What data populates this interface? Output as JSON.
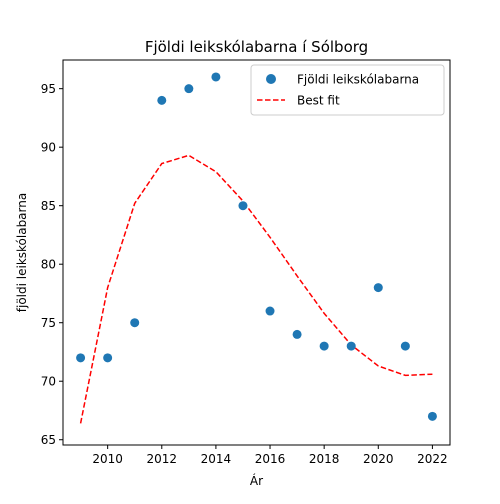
{
  "chart_data": {
    "type": "scatter",
    "title": "Fjöldi leikskólabarna í Sólborg",
    "xlabel": "Ár",
    "ylabel": "fjöldi leikskólabarna",
    "xlim": [
      2008.35,
      2022.65
    ],
    "ylim": [
      64.55,
      97.45
    ],
    "xticks": [
      2010,
      2012,
      2014,
      2016,
      2018,
      2020,
      2022
    ],
    "yticks": [
      65,
      70,
      75,
      80,
      85,
      90,
      95
    ],
    "grid": false,
    "legend_position": "top-right",
    "series": [
      {
        "name": "Fjöldi leikskólabarna",
        "kind": "scatter",
        "color": "#1f77b4",
        "x": [
          2009,
          2010,
          2011,
          2012,
          2013,
          2014,
          2015,
          2016,
          2017,
          2018,
          2019,
          2020,
          2021,
          2022
        ],
        "y": [
          72,
          72,
          75,
          94,
          95,
          96,
          85,
          76,
          74,
          73,
          73,
          78,
          73,
          67
        ]
      },
      {
        "name": "Best fit",
        "kind": "line",
        "style": "dashed",
        "color": "#ff0000",
        "x": [
          2009,
          2010,
          2011,
          2012,
          2013,
          2014,
          2015,
          2016,
          2017,
          2018,
          2019,
          2020,
          2021,
          2022
        ],
        "y": [
          66.4,
          78.0,
          85.2,
          88.6,
          89.3,
          87.9,
          85.4,
          82.3,
          79.0,
          75.8,
          73.1,
          71.3,
          70.5,
          70.6
        ]
      }
    ]
  }
}
